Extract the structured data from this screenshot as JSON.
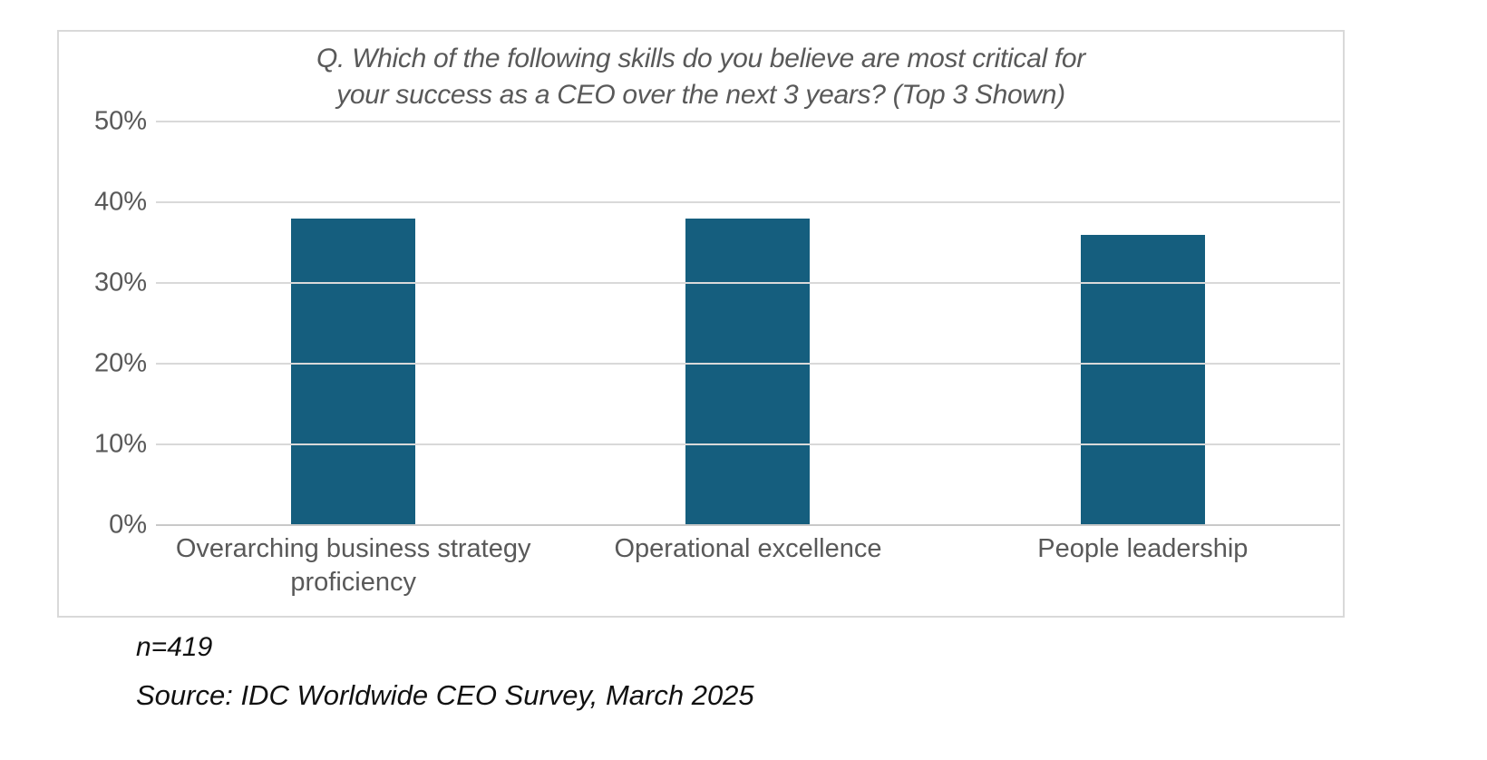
{
  "chart_data": {
    "type": "bar",
    "title": "Q. Which of the following skills do you believe are most critical for your success as a CEO over the next 3 years? (Top 3 Shown)",
    "title_lines": [
      "Q. Which of the following skills do you believe are most critical for",
      "your success as a CEO over the next 3 years? (Top 3 Shown)"
    ],
    "categories": [
      "Overarching business strategy proficiency",
      "Operational excellence",
      "People leadership"
    ],
    "category_lines": [
      [
        "Overarching business strategy",
        "proficiency"
      ],
      [
        "Operational excellence"
      ],
      [
        "People leadership"
      ]
    ],
    "values": [
      38,
      38,
      36
    ],
    "unit": "%",
    "xlabel": "",
    "ylabel": "",
    "ylim": [
      0,
      50
    ],
    "yticks": [
      {
        "label": "50%",
        "value": 50
      },
      {
        "label": "40%",
        "value": 40
      },
      {
        "label": "30%",
        "value": 30
      },
      {
        "label": "20%",
        "value": 20
      },
      {
        "label": "10%",
        "value": 10
      },
      {
        "label": "0%",
        "value": 0
      }
    ],
    "grid": true,
    "legend": false,
    "bar_color": "#155e7e"
  },
  "footer": {
    "sample_size": "n=419",
    "source": "Source: IDC Worldwide CEO Survey, March 2025"
  },
  "colors": {
    "bar": "#155e7e",
    "axis_text": "#595959",
    "title_text": "#595959",
    "gridline": "#d9d9d9",
    "frame_border": "#d9d9d9",
    "axis_line": "#c9c9c9",
    "footer_text": "#111111",
    "background": "#ffffff"
  }
}
